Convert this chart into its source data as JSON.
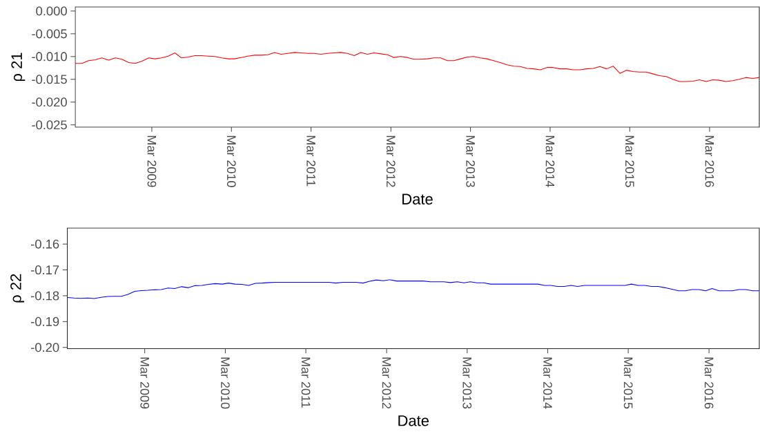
{
  "chart_data": [
    {
      "type": "line",
      "xlabel": "Date",
      "ylabel": "ρ 21",
      "x": [
        "2008-03-15",
        "2008-04-15",
        "2008-05-15",
        "2008-06-15",
        "2008-07-15",
        "2008-08-15",
        "2008-09-15",
        "2008-10-15",
        "2008-11-15",
        "2008-12-15",
        "2009-01-15",
        "2009-02-15",
        "2009-03-15",
        "2009-04-15",
        "2009-05-15",
        "2009-06-15",
        "2009-07-15",
        "2009-08-15",
        "2009-09-15",
        "2009-10-15",
        "2009-11-15",
        "2009-12-15",
        "2010-01-15",
        "2010-02-15",
        "2010-03-15",
        "2010-04-15",
        "2010-05-15",
        "2010-06-15",
        "2010-07-15",
        "2010-08-15",
        "2010-09-15",
        "2010-10-15",
        "2010-11-15",
        "2010-12-15",
        "2011-01-15",
        "2011-02-15",
        "2011-03-15",
        "2011-04-15",
        "2011-05-15",
        "2011-06-15",
        "2011-07-15",
        "2011-08-15",
        "2011-09-15",
        "2011-10-15",
        "2011-11-15",
        "2011-12-15",
        "2012-01-15",
        "2012-02-15",
        "2012-03-15",
        "2012-04-15",
        "2012-05-15",
        "2012-06-15",
        "2012-07-15",
        "2012-08-15",
        "2012-09-15",
        "2012-10-15",
        "2012-11-15",
        "2012-12-15",
        "2013-01-15",
        "2013-02-15",
        "2013-03-15",
        "2013-04-15",
        "2013-05-15",
        "2013-06-15",
        "2013-07-15",
        "2013-08-15",
        "2013-09-15",
        "2013-10-15",
        "2013-11-15",
        "2013-12-15",
        "2014-01-15",
        "2014-02-15",
        "2014-03-15",
        "2014-04-15",
        "2014-05-15",
        "2014-06-15",
        "2014-07-15",
        "2014-08-15",
        "2014-09-15",
        "2014-10-15",
        "2014-11-15",
        "2014-12-15",
        "2015-01-15",
        "2015-02-15",
        "2015-03-15",
        "2015-04-15",
        "2015-05-15",
        "2015-06-15",
        "2015-07-15",
        "2015-08-15",
        "2015-09-15",
        "2015-10-15",
        "2015-11-15",
        "2015-12-15",
        "2016-01-15",
        "2016-02-15",
        "2016-03-15",
        "2016-04-15",
        "2016-05-15",
        "2016-06-15",
        "2016-07-15",
        "2016-08-15",
        "2016-09-15",
        "2016-10-15"
      ],
      "series": [
        {
          "color": "#ff0000",
          "values": [
            -0.0115,
            -0.0115,
            -0.0109,
            -0.0107,
            -0.0103,
            -0.0108,
            -0.0103,
            -0.0106,
            -0.0113,
            -0.0115,
            -0.011,
            -0.0103,
            -0.0105,
            -0.0103,
            -0.0099,
            -0.0092,
            -0.0103,
            -0.0101,
            -0.0098,
            -0.0098,
            -0.0099,
            -0.01,
            -0.0103,
            -0.0105,
            -0.0105,
            -0.0102,
            -0.0099,
            -0.0097,
            -0.0097,
            -0.0096,
            -0.0091,
            -0.0095,
            -0.0093,
            -0.0091,
            -0.0092,
            -0.0093,
            -0.0093,
            -0.0095,
            -0.0093,
            -0.0092,
            -0.0091,
            -0.0093,
            -0.0098,
            -0.0091,
            -0.0095,
            -0.0092,
            -0.0094,
            -0.0096,
            -0.0102,
            -0.01,
            -0.0102,
            -0.0106,
            -0.0106,
            -0.0105,
            -0.0103,
            -0.0103,
            -0.0109,
            -0.0109,
            -0.0105,
            -0.0101,
            -0.01,
            -0.0103,
            -0.0105,
            -0.0109,
            -0.0113,
            -0.0118,
            -0.0121,
            -0.0122,
            -0.0126,
            -0.0127,
            -0.0129,
            -0.0124,
            -0.0124,
            -0.0127,
            -0.0127,
            -0.0129,
            -0.0129,
            -0.0127,
            -0.0126,
            -0.0122,
            -0.0127,
            -0.0121,
            -0.0137,
            -0.013,
            -0.0133,
            -0.0134,
            -0.0134,
            -0.0138,
            -0.0142,
            -0.0144,
            -0.015,
            -0.0155,
            -0.0155,
            -0.0154,
            -0.0151,
            -0.0155,
            -0.0151,
            -0.0152,
            -0.0155,
            -0.0153,
            -0.015,
            -0.0146,
            -0.0148,
            -0.0146
          ]
        }
      ],
      "xlim": [
        "2008-03-15",
        "2016-10-15"
      ],
      "xticks": [
        {
          "value": "2009-03-01",
          "label": "Mar 2009"
        },
        {
          "value": "2010-03-01",
          "label": "Mar 2010"
        },
        {
          "value": "2011-03-01",
          "label": "Mar 2011"
        },
        {
          "value": "2012-03-01",
          "label": "Mar 2012"
        },
        {
          "value": "2013-03-01",
          "label": "Mar 2013"
        },
        {
          "value": "2014-03-01",
          "label": "Mar 2014"
        },
        {
          "value": "2015-03-01",
          "label": "Mar 2015"
        },
        {
          "value": "2016-03-01",
          "label": "Mar 2016"
        }
      ],
      "ylim": [
        -0.0255,
        0.0009
      ],
      "yticks": [
        {
          "value": 0,
          "label": "0.000"
        },
        -0.005,
        {
          "value": -0.01,
          "label": "-0.010"
        },
        -0.015,
        {
          "value": -0.02,
          "label": "-0.020"
        },
        -0.025
      ]
    },
    {
      "type": "line",
      "xlabel": "Date",
      "ylabel": "ρ 22",
      "x": [
        "2008-03-15",
        "2008-04-15",
        "2008-05-15",
        "2008-06-15",
        "2008-07-15",
        "2008-08-15",
        "2008-09-15",
        "2008-10-15",
        "2008-11-15",
        "2008-12-15",
        "2009-01-15",
        "2009-02-15",
        "2009-03-15",
        "2009-04-15",
        "2009-05-15",
        "2009-06-15",
        "2009-07-15",
        "2009-08-15",
        "2009-09-15",
        "2009-10-15",
        "2009-11-15",
        "2009-12-15",
        "2010-01-15",
        "2010-02-15",
        "2010-03-15",
        "2010-04-15",
        "2010-05-15",
        "2010-06-15",
        "2010-07-15",
        "2010-08-15",
        "2010-09-15",
        "2010-10-15",
        "2010-11-15",
        "2010-12-15",
        "2011-01-15",
        "2011-02-15",
        "2011-03-15",
        "2011-04-15",
        "2011-05-15",
        "2011-06-15",
        "2011-07-15",
        "2011-08-15",
        "2011-09-15",
        "2011-10-15",
        "2011-11-15",
        "2011-12-15",
        "2012-01-15",
        "2012-02-15",
        "2012-03-15",
        "2012-04-15",
        "2012-05-15",
        "2012-06-15",
        "2012-07-15",
        "2012-08-15",
        "2012-09-15",
        "2012-10-15",
        "2012-11-15",
        "2012-12-15",
        "2013-01-15",
        "2013-02-15",
        "2013-03-15",
        "2013-04-15",
        "2013-05-15",
        "2013-06-15",
        "2013-07-15",
        "2013-08-15",
        "2013-09-15",
        "2013-10-15",
        "2013-11-15",
        "2013-12-15",
        "2014-01-15",
        "2014-02-15",
        "2014-03-15",
        "2014-04-15",
        "2014-05-15",
        "2014-06-15",
        "2014-07-15",
        "2014-08-15",
        "2014-09-15",
        "2014-10-15",
        "2014-11-15",
        "2014-12-15",
        "2015-01-15",
        "2015-02-15",
        "2015-03-15",
        "2015-04-15",
        "2015-05-15",
        "2015-06-15",
        "2015-07-15",
        "2015-08-15",
        "2015-09-15",
        "2015-10-15",
        "2015-11-15",
        "2015-12-15",
        "2016-01-15",
        "2016-02-15",
        "2016-03-15",
        "2016-04-15",
        "2016-05-15",
        "2016-06-15",
        "2016-07-15",
        "2016-08-15",
        "2016-09-15",
        "2016-10-15"
      ],
      "series": [
        {
          "color": "#0000ff",
          "values": [
            -0.1807,
            -0.1809,
            -0.181,
            -0.1809,
            -0.1811,
            -0.1806,
            -0.1803,
            -0.1802,
            -0.1802,
            -0.1795,
            -0.1783,
            -0.178,
            -0.1779,
            -0.1777,
            -0.1776,
            -0.177,
            -0.1772,
            -0.1765,
            -0.1769,
            -0.1761,
            -0.176,
            -0.1756,
            -0.1753,
            -0.1755,
            -0.1751,
            -0.1755,
            -0.1756,
            -0.176,
            -0.1752,
            -0.1751,
            -0.1749,
            -0.1748,
            -0.1748,
            -0.1748,
            -0.1748,
            -0.1748,
            -0.1748,
            -0.1748,
            -0.1748,
            -0.1748,
            -0.1751,
            -0.1748,
            -0.1748,
            -0.1748,
            -0.1751,
            -0.1744,
            -0.1739,
            -0.1742,
            -0.1738,
            -0.1743,
            -0.1743,
            -0.1743,
            -0.1743,
            -0.1743,
            -0.1746,
            -0.1746,
            -0.1746,
            -0.1749,
            -0.1746,
            -0.175,
            -0.1746,
            -0.175,
            -0.175,
            -0.1755,
            -0.1755,
            -0.1755,
            -0.1755,
            -0.1755,
            -0.1755,
            -0.1755,
            -0.1755,
            -0.176,
            -0.176,
            -0.1764,
            -0.1764,
            -0.176,
            -0.1764,
            -0.176,
            -0.176,
            -0.176,
            -0.176,
            -0.176,
            -0.176,
            -0.176,
            -0.1755,
            -0.176,
            -0.176,
            -0.1764,
            -0.1764,
            -0.1769,
            -0.1775,
            -0.1781,
            -0.1781,
            -0.1776,
            -0.1776,
            -0.1781,
            -0.1772,
            -0.1781,
            -0.1781,
            -0.1781,
            -0.1776,
            -0.1776,
            -0.1781,
            -0.1781
          ]
        }
      ],
      "xlim": [
        "2008-03-15",
        "2016-10-15"
      ],
      "xticks": [
        {
          "value": "2009-03-01",
          "label": "Mar 2009"
        },
        {
          "value": "2010-03-01",
          "label": "Mar 2010"
        },
        {
          "value": "2011-03-01",
          "label": "Mar 2011"
        },
        {
          "value": "2012-03-01",
          "label": "Mar 2012"
        },
        {
          "value": "2013-03-01",
          "label": "Mar 2013"
        },
        {
          "value": "2014-03-01",
          "label": "Mar 2014"
        },
        {
          "value": "2015-03-01",
          "label": "Mar 2015"
        },
        {
          "value": "2016-03-01",
          "label": "Mar 2016"
        }
      ],
      "ylim": [
        -0.2005,
        -0.1538
      ],
      "yticks": [
        -0.16,
        -0.17,
        -0.18,
        -0.19,
        {
          "value": -0.2,
          "label": "-0.20"
        }
      ]
    }
  ]
}
